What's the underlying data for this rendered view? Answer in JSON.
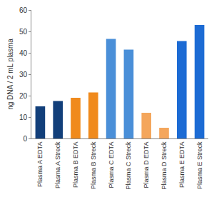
{
  "chart_data": {
    "type": "bar",
    "y_label": "ng DNA / 2 mL plasma",
    "categories": [
      "Plasma A EDTA",
      "Plasma A Streck",
      "Plasma B EDTA",
      "Plasma B Streck",
      "Plasma C EDTA",
      "Plasma C Streck",
      "Plasma D EDTA",
      "Plasma D Streck",
      "Plasma E EDTA",
      "Plasma E Streck"
    ],
    "values": [
      15,
      17.5,
      19,
      21.5,
      46.5,
      41.5,
      12,
      5,
      45.5,
      53
    ],
    "colors": [
      "#123f7a",
      "#123f7a",
      "#f08a1c",
      "#f08a1c",
      "#4a8fd8",
      "#4a8fd8",
      "#f4a65c",
      "#f4a65c",
      "#1c6bd4",
      "#1c6bd4"
    ],
    "ylim": [
      0,
      60
    ],
    "yticks": [
      0,
      10,
      20,
      30,
      40,
      50,
      60
    ],
    "grid": false
  }
}
